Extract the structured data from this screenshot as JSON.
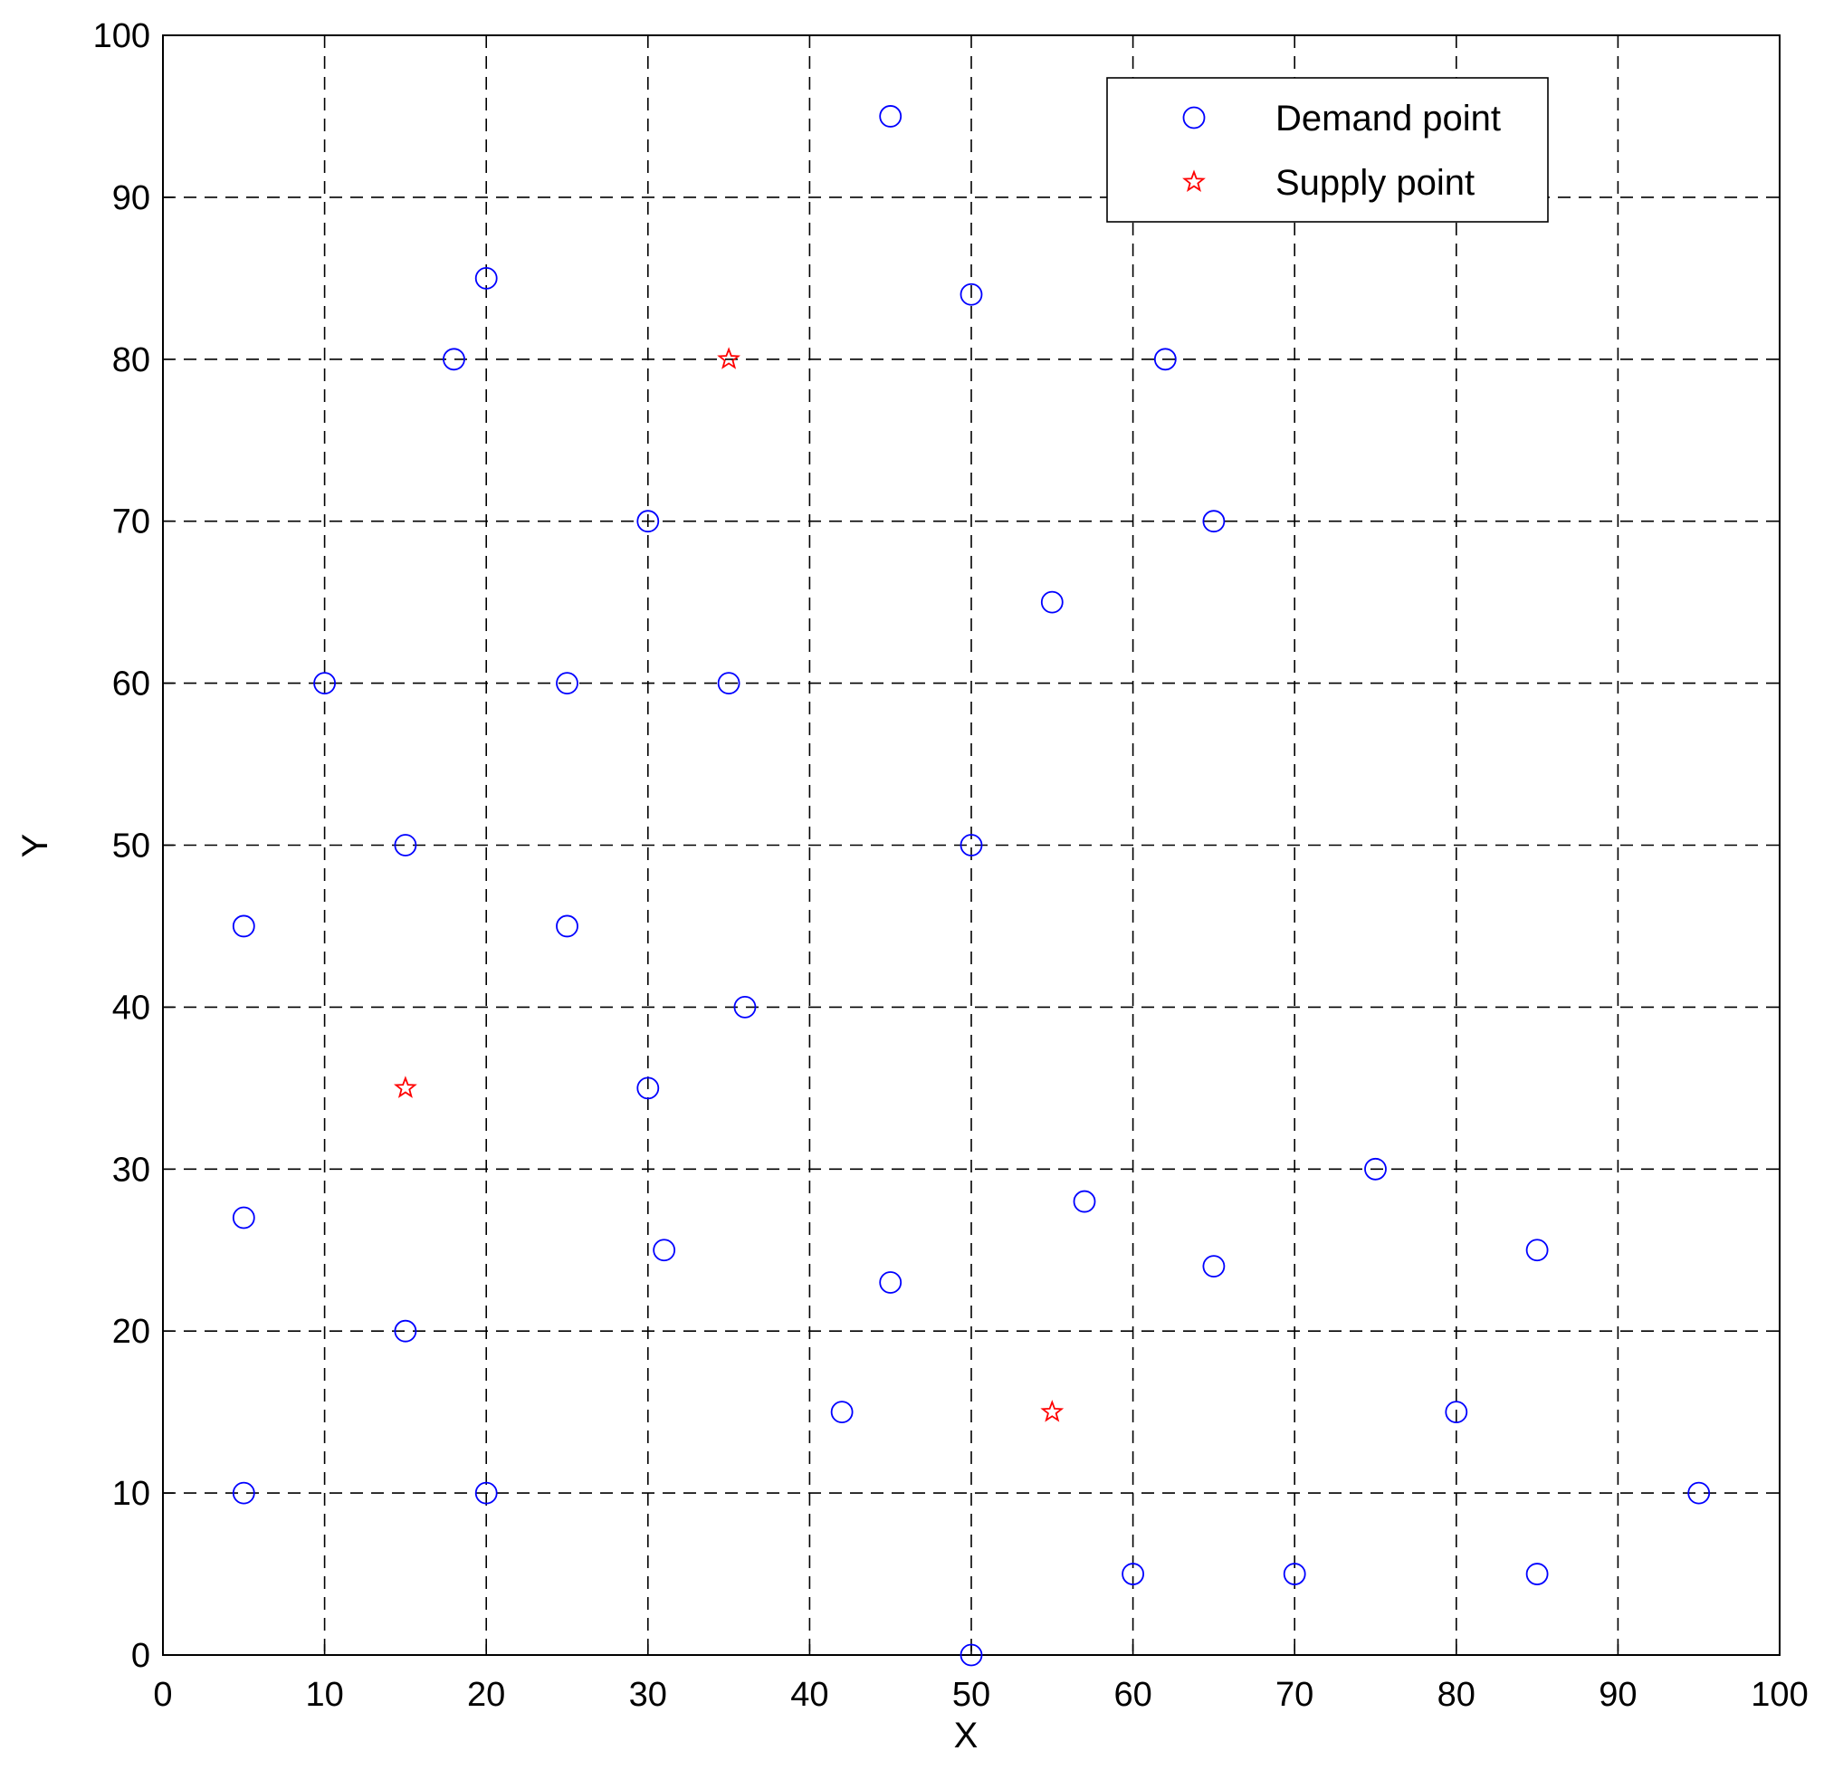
{
  "chart_data": {
    "type": "scatter",
    "xlabel": "X",
    "ylabel": "Y",
    "xlim": [
      0,
      100
    ],
    "ylim": [
      0,
      100
    ],
    "xticks": [
      0,
      10,
      20,
      30,
      40,
      50,
      60,
      70,
      80,
      90,
      100
    ],
    "yticks": [
      0,
      10,
      20,
      30,
      40,
      50,
      60,
      70,
      80,
      90,
      100
    ],
    "grid": true,
    "legend": "upper right",
    "series": [
      {
        "name": "Demand point",
        "color": "#0000ff",
        "marker": "circle",
        "x": [
          45,
          20,
          50,
          18,
          62,
          30,
          65,
          55,
          10,
          25,
          35,
          15,
          50,
          5,
          25,
          36,
          30,
          75,
          57,
          5,
          31,
          85,
          65,
          45,
          15,
          42,
          80,
          5,
          20,
          95,
          60,
          70,
          85,
          50
        ],
        "y": [
          95,
          85,
          84,
          80,
          80,
          70,
          70,
          65,
          60,
          60,
          60,
          50,
          50,
          45,
          45,
          40,
          35,
          30,
          28,
          27,
          25,
          25,
          24,
          23,
          20,
          15,
          15,
          10,
          10,
          10,
          5,
          5,
          5,
          0
        ]
      },
      {
        "name": "Supply point",
        "color": "#ff0000",
        "marker": "star",
        "x": [
          35,
          15,
          55
        ],
        "y": [
          80,
          35,
          15
        ]
      }
    ]
  }
}
